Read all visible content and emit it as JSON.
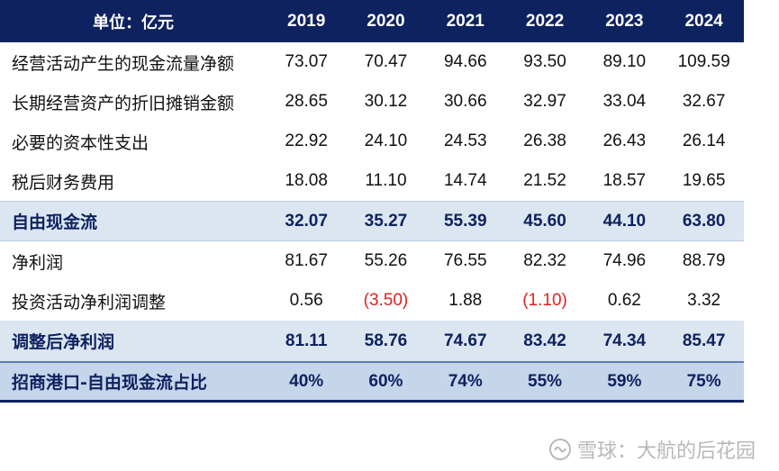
{
  "table": {
    "unit_label": "单位：亿元",
    "years": [
      "2019",
      "2020",
      "2021",
      "2022",
      "2023",
      "2024"
    ],
    "rows": [
      {
        "label": "经营活动产生的现金流量净额",
        "values": [
          "73.07",
          "70.47",
          "94.66",
          "93.50",
          "89.10",
          "109.59"
        ]
      },
      {
        "label": "长期经营资产的折旧摊销金额",
        "values": [
          "28.65",
          "30.12",
          "30.66",
          "32.97",
          "33.04",
          "32.67"
        ]
      },
      {
        "label": "必要的资本性支出",
        "values": [
          "22.92",
          "24.10",
          "24.53",
          "26.38",
          "26.43",
          "26.14"
        ]
      },
      {
        "label": "税后财务费用",
        "values": [
          "18.08",
          "11.10",
          "14.74",
          "21.52",
          "18.57",
          "19.65"
        ]
      },
      {
        "label": "自由现金流",
        "values": [
          "32.07",
          "35.27",
          "55.39",
          "45.60",
          "44.10",
          "63.80"
        ]
      },
      {
        "label": "净利润",
        "values": [
          "81.67",
          "55.26",
          "76.55",
          "82.32",
          "74.96",
          "88.79"
        ]
      },
      {
        "label": "投资活动净利润调整",
        "values": [
          "0.56",
          "(3.50)",
          "1.88",
          "(1.10)",
          "0.62",
          "3.32"
        ]
      },
      {
        "label": "调整后净利润",
        "values": [
          "81.11",
          "58.76",
          "74.67",
          "83.42",
          "74.34",
          "85.47"
        ]
      },
      {
        "label": "招商港口-自由现金流占比",
        "values": [
          "40%",
          "60%",
          "74%",
          "55%",
          "59%",
          "75%"
        ]
      }
    ]
  },
  "watermark": {
    "text": "雪球：大航的后花园",
    "icon": "snowball-icon"
  },
  "colors": {
    "header_bg": "#0e2260",
    "highlight_bg": "#dce6f1",
    "final_bg": "#c5d5ea",
    "negative": "#e02020"
  },
  "chart_data": {
    "type": "table",
    "columns": [
      "2019",
      "2020",
      "2021",
      "2022",
      "2023",
      "2024"
    ],
    "rows": [
      {
        "name": "经营活动产生的现金流量净额",
        "values": [
          73.07,
          70.47,
          94.66,
          93.5,
          89.1,
          109.59
        ]
      },
      {
        "name": "长期经营资产的折旧摊销金额",
        "values": [
          28.65,
          30.12,
          30.66,
          32.97,
          33.04,
          32.67
        ]
      },
      {
        "name": "必要的资本性支出",
        "values": [
          22.92,
          24.1,
          24.53,
          26.38,
          26.43,
          26.14
        ]
      },
      {
        "name": "税后财务费用",
        "values": [
          18.08,
          11.1,
          14.74,
          21.52,
          18.57,
          19.65
        ]
      },
      {
        "name": "自由现金流",
        "values": [
          32.07,
          35.27,
          55.39,
          45.6,
          44.1,
          63.8
        ]
      },
      {
        "name": "净利润",
        "values": [
          81.67,
          55.26,
          76.55,
          82.32,
          74.96,
          88.79
        ]
      },
      {
        "name": "投资活动净利润调整",
        "values": [
          0.56,
          -3.5,
          1.88,
          -1.1,
          0.62,
          3.32
        ]
      },
      {
        "name": "调整后净利润",
        "values": [
          81.11,
          58.76,
          74.67,
          83.42,
          74.34,
          85.47
        ]
      },
      {
        "name": "招商港口-自由现金流占比",
        "values": [
          0.4,
          0.6,
          0.74,
          0.55,
          0.59,
          0.75
        ]
      }
    ]
  }
}
